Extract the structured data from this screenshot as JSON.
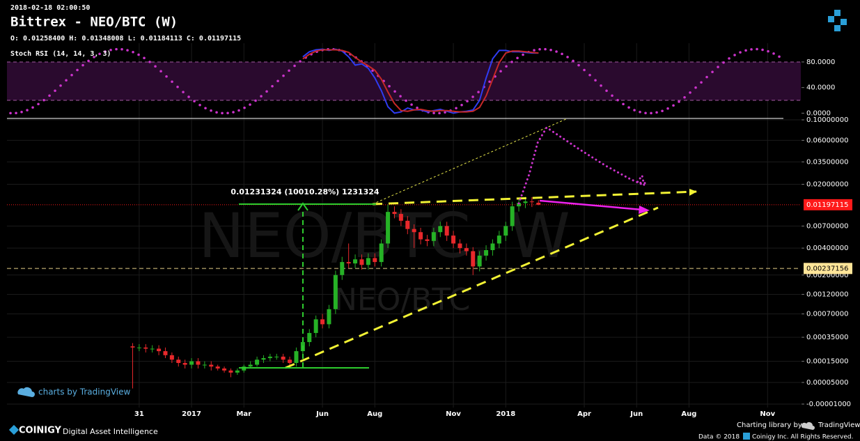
{
  "header": {
    "timestamp": "2018-02-18 02:00:50"
  },
  "chart_data": [
    {
      "type": "candlestick",
      "title": "Bittrex - NEO/BTC (W)",
      "ohlc_label": "O: 0.01258400 H: 0.01348008 L: 0.01184113 C: 0.01197115",
      "watermark": "NEO/BTC, W",
      "watermark_symbol": "NEO/BTC",
      "measure_label": "0.01231324 (10010.28%) 1231324",
      "x": [
        -2.25,
        -2,
        -1.75,
        -1.5,
        -1.25,
        -1,
        -0.75,
        -0.5,
        -0.25,
        0,
        0.25,
        0.5,
        0.75,
        1,
        1.25,
        1.5,
        1.75,
        2,
        2.25,
        2.5,
        2.75,
        3,
        3.25,
        3.5,
        3.75,
        4,
        4.25,
        4.5,
        4.75,
        5,
        5.25,
        5.5,
        5.75,
        6,
        6.25,
        6.5,
        6.75,
        7,
        7.25,
        7.5,
        7.75,
        8,
        8.25,
        8.5,
        8.75,
        9,
        9.25,
        9.5,
        9.75,
        10,
        10.25,
        10.5,
        10.75,
        11,
        11.25,
        11.5,
        11.75,
        12,
        12.25,
        12.5,
        12.75,
        13,
        13.25
      ],
      "open": [
        0.00026,
        0.00025,
        0.00025,
        0.00024,
        0.00024,
        0.00022,
        0.00019,
        0.00016,
        0.00014,
        0.00013,
        0.00015,
        0.00013,
        0.00013,
        0.00012,
        0.00011,
        0.0001,
        9e-05,
        0.0001,
        0.00012,
        0.00013,
        0.00016,
        0.00017,
        0.00018,
        0.00018,
        0.00016,
        0.00014,
        0.00022,
        0.0003,
        0.0004,
        0.0006,
        0.00052,
        0.0008,
        0.002,
        0.0028,
        0.0027,
        0.003,
        0.0026,
        0.0031,
        0.0028,
        0.0045,
        0.01,
        0.0095,
        0.008,
        0.0065,
        0.006,
        0.005,
        0.0048,
        0.006,
        0.007,
        0.0055,
        0.0045,
        0.004,
        0.0037,
        0.0025,
        0.0033,
        0.0038,
        0.0045,
        0.0055,
        0.007,
        0.0115,
        0.0125,
        0.013,
        0.012584
      ],
      "high": [
        0.00029,
        0.00028,
        0.00028,
        0.00027,
        0.00027,
        0.00025,
        0.00021,
        0.00018,
        0.00016,
        0.00017,
        0.00017,
        0.00015,
        0.00015,
        0.00013,
        0.00012,
        0.00011,
        0.00011,
        0.00013,
        0.00015,
        0.00018,
        0.00019,
        0.0002,
        0.0002,
        0.0002,
        0.00018,
        0.00025,
        0.00034,
        0.00045,
        0.00067,
        0.0007,
        0.0009,
        0.00224,
        0.0032,
        0.0045,
        0.0034,
        0.0034,
        0.0035,
        0.0035,
        0.005,
        0.012,
        0.0115,
        0.0107,
        0.009,
        0.0073,
        0.0067,
        0.0056,
        0.0067,
        0.0078,
        0.0078,
        0.0062,
        0.005,
        0.0045,
        0.0041,
        0.0037,
        0.0043,
        0.005,
        0.0062,
        0.0078,
        0.0129,
        0.014,
        0.0146,
        0.0145,
        0.01348008
      ],
      "low": [
        3e-05,
        0.00022,
        0.00021,
        0.00021,
        0.00019,
        0.00017,
        0.00014,
        0.00012,
        0.00011,
        0.00011,
        0.00011,
        0.00011,
        0.0001,
        0.0001,
        9e-05,
        7e-05,
        8e-05,
        9e-05,
        0.00011,
        0.00012,
        0.00014,
        0.00015,
        0.00016,
        0.00014,
        0.00012,
        0.00012,
        0.00019,
        0.00026,
        0.00035,
        0.00046,
        0.00046,
        0.0007,
        0.00176,
        0.0024,
        0.0024,
        0.0023,
        0.0023,
        0.0025,
        0.0025,
        0.004,
        0.0085,
        0.007,
        0.0057,
        0.004,
        0.0044,
        0.0042,
        0.0042,
        0.0053,
        0.0048,
        0.004,
        0.0035,
        0.0033,
        0.002,
        0.0022,
        0.0029,
        0.0033,
        0.004,
        0.0048,
        0.0062,
        0.0101,
        0.011,
        0.0113,
        0.01184113
      ],
      "close": [
        0.00025,
        0.00025,
        0.00024,
        0.00024,
        0.00022,
        0.00019,
        0.00016,
        0.00014,
        0.00013,
        0.00015,
        0.00013,
        0.00013,
        0.00012,
        0.00011,
        0.0001,
        9e-05,
        0.0001,
        0.00012,
        0.00013,
        0.00016,
        0.00017,
        0.00018,
        0.00018,
        0.00016,
        0.00014,
        0.00022,
        0.0003,
        0.0004,
        0.0006,
        0.00052,
        0.0008,
        0.002,
        0.0028,
        0.0027,
        0.003,
        0.0026,
        0.0031,
        0.0028,
        0.0045,
        0.01,
        0.0095,
        0.008,
        0.0065,
        0.006,
        0.005,
        0.0048,
        0.006,
        0.007,
        0.0055,
        0.0045,
        0.004,
        0.0037,
        0.0025,
        0.0033,
        0.0038,
        0.0045,
        0.0055,
        0.007,
        0.0115,
        0.0125,
        0.013,
        0.0128,
        0.01197115
      ],
      "up_color": "#26b226",
      "down_color": "#e8282b",
      "xlim": [
        -7.05,
        23.27
      ],
      "xticks": [
        {
          "value": -2,
          "label": "31"
        },
        {
          "value": 0,
          "label": "2017"
        },
        {
          "value": 2,
          "label": "Mar"
        },
        {
          "value": 5,
          "label": "Jun"
        },
        {
          "value": 7,
          "label": "Aug"
        },
        {
          "value": 10,
          "label": "Nov"
        },
        {
          "value": 12,
          "label": "2018"
        },
        {
          "value": 15,
          "label": "Apr"
        },
        {
          "value": 17,
          "label": "Jun"
        },
        {
          "value": 19,
          "label": "Aug"
        },
        {
          "value": 22,
          "label": "Nov"
        }
      ],
      "ylim": [
        -1e-05,
        0.1
      ],
      "log_scale": true,
      "yticks": [
        {
          "value": 0.1,
          "label": "0.10000000"
        },
        {
          "value": 0.06,
          "label": "0.06000000"
        },
        {
          "value": 0.035,
          "label": "0.03500000"
        },
        {
          "value": 0.02,
          "label": "0.02000000"
        },
        {
          "value": 0.007,
          "label": "0.00700000"
        },
        {
          "value": 0.004,
          "label": "0.00400000"
        },
        {
          "value": 0.002,
          "label": "0.00200000"
        },
        {
          "value": 0.0012,
          "label": "0.00120000"
        },
        {
          "value": 0.0007,
          "label": "0.00070000"
        },
        {
          "value": 0.00035,
          "label": "0.00035000"
        },
        {
          "value": 0.00015,
          "label": "0.00015000"
        },
        {
          "value": 5e-05,
          "label": "0.00005000"
        },
        {
          "value": -1e-05,
          "label": "-0.00001000"
        }
      ],
      "last_price": 0.01197115,
      "last_price_color": "#ff1a1a",
      "level_line": 0.00237156,
      "level_line_color": "#9c8c5c",
      "level_label_color": "#ffe599",
      "grid": true
    },
    {
      "type": "line",
      "title": "Stoch RSI (14, 14, 3, 3)",
      "x": [
        -2.25,
        -2,
        -1.75,
        -1.5,
        -1.25,
        -1,
        -0.75,
        -0.5,
        -0.25,
        0,
        0.25,
        0.5,
        0.75,
        1,
        1.25,
        1.5,
        1.75,
        2,
        2.25,
        2.5,
        2.75,
        3,
        3.25,
        3.5,
        3.75,
        4,
        4.25,
        4.5,
        4.75,
        5,
        5.25,
        5.5,
        5.75,
        6,
        6.25,
        6.5,
        6.75,
        7,
        7.25,
        7.5,
        7.75,
        8,
        8.25,
        8.5,
        8.75,
        9,
        9.25,
        9.5,
        9.75,
        10,
        10.25,
        10.5,
        10.75,
        11,
        11.25,
        11.5,
        11.75,
        12,
        12.25,
        12.5,
        12.75,
        13,
        13.25
      ],
      "series": [
        {
          "color": "#2f3cf2",
          "values": [
            null,
            null,
            null,
            null,
            null,
            null,
            null,
            null,
            null,
            null,
            null,
            null,
            null,
            null,
            null,
            null,
            null,
            null,
            null,
            null,
            null,
            null,
            null,
            null,
            null,
            null,
            88,
            96,
            99,
            100,
            98,
            100,
            97,
            88,
            75,
            77,
            70,
            55,
            35,
            10,
            0,
            2,
            8,
            5,
            5,
            2,
            4,
            6,
            3,
            0,
            2,
            3,
            5,
            20,
            55,
            85,
            98,
            98,
            96,
            96,
            95,
            94,
            94
          ]
        },
        {
          "color": "#c62828",
          "values": [
            null,
            null,
            null,
            null,
            null,
            null,
            null,
            null,
            null,
            null,
            null,
            null,
            null,
            null,
            null,
            null,
            null,
            null,
            null,
            null,
            null,
            null,
            null,
            null,
            null,
            null,
            85,
            92,
            97,
            99,
            99,
            99,
            98,
            95,
            87,
            80,
            74,
            67,
            53,
            33,
            15,
            4,
            3,
            5,
            6,
            4,
            3,
            4,
            4,
            3,
            2,
            2,
            3,
            9,
            27,
            53,
            79,
            94,
            97,
            97,
            96,
            95,
            94
          ]
        }
      ],
      "xlim": [
        -7.05,
        23.27
      ],
      "ylim": [
        -5,
        105
      ],
      "yticks": [
        {
          "value": 80,
          "label": "80.0000"
        },
        {
          "value": 40,
          "label": "40.0000"
        },
        {
          "value": 0,
          "label": "0.0000"
        }
      ],
      "band_lines": [
        20,
        80
      ],
      "band_color": "#2a0a2e"
    }
  ],
  "footer": {
    "tv_badge": "charts by TradingView",
    "brand": "COINIGY",
    "tagline": "Digital Asset Intelligence",
    "library": "Charting library by",
    "library_name": "TradingView",
    "copyright": "Data © 2018",
    "rights": "Coinigy Inc. All Rights Reserved."
  }
}
